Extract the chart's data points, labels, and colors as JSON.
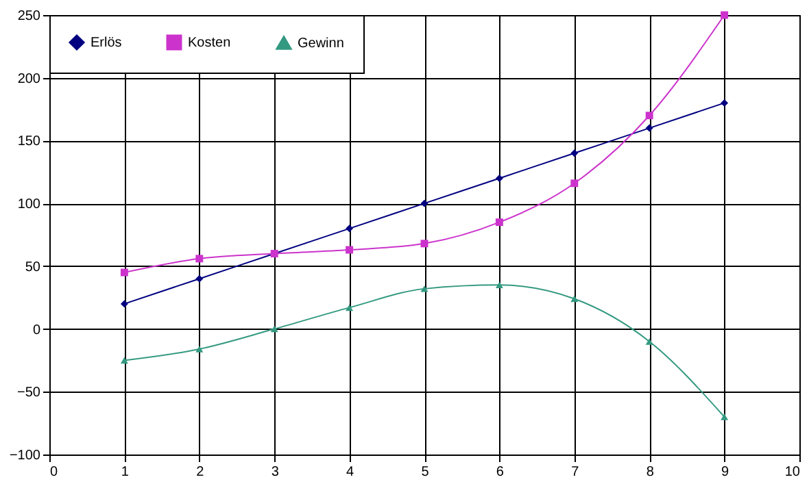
{
  "chart_data": {
    "type": "line",
    "x": [
      1,
      2,
      3,
      4,
      5,
      6,
      7,
      8,
      9
    ],
    "series": [
      {
        "name": "Erlös",
        "color": "#000080",
        "marker": "diamond",
        "values": [
          20,
          40,
          60,
          80,
          100,
          120,
          140,
          160,
          180
        ]
      },
      {
        "name": "Kosten",
        "color": "#cc33cc",
        "marker": "square",
        "values": [
          45,
          56,
          60,
          63,
          68,
          85,
          116,
          170,
          250
        ]
      },
      {
        "name": "Gewinn",
        "color": "#339980",
        "marker": "triangle",
        "values": [
          -25,
          -16,
          0,
          17,
          32,
          35,
          24,
          -10,
          -70
        ]
      }
    ],
    "xlim": [
      0,
      10
    ],
    "xticks": [
      0,
      1,
      2,
      3,
      4,
      5,
      6,
      7,
      8,
      9,
      10
    ],
    "ylim": [
      -100,
      250
    ],
    "yticks": [
      -100,
      -50,
      0,
      50,
      100,
      150,
      200,
      250
    ],
    "grid": true,
    "legend": "top left",
    "line_style": "solid"
  }
}
